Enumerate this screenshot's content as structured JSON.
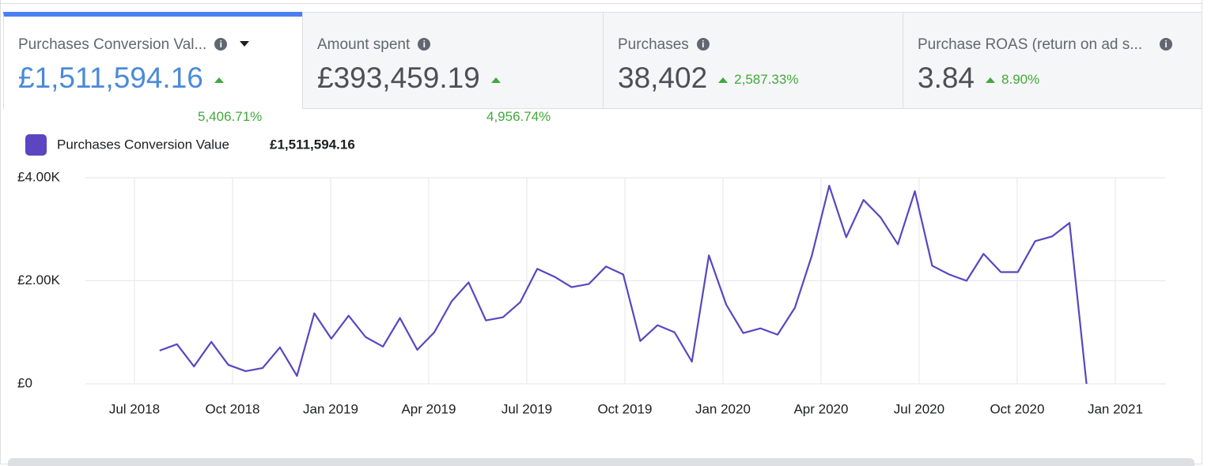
{
  "tabs": [
    {
      "title": "Purchases Conversion Val...",
      "value": "£1,511,594.16",
      "change": "5,406.71%"
    },
    {
      "title": "Amount spent",
      "value": "£393,459.19",
      "change": "4,956.74%"
    },
    {
      "title": "Purchases",
      "value": "38,402",
      "change": "2,587.33%"
    },
    {
      "title": "Purchase ROAS (return on ad s...",
      "value": "3.84",
      "change": "8.90%"
    }
  ],
  "chart_data": {
    "type": "line",
    "legend_total": "£1,511,594.16",
    "x": [
      0.77,
      1.3,
      1.82,
      2.35,
      2.87,
      3.4,
      3.92,
      4.45,
      4.97,
      5.5,
      6.02,
      6.55,
      7.07,
      7.6,
      8.12,
      8.65,
      9.17,
      9.7,
      10.22,
      10.75,
      11.27,
      11.8,
      12.32,
      12.85,
      13.37,
      13.9,
      14.42,
      14.95,
      15.47,
      16.0,
      16.52,
      17.05,
      17.57,
      18.1,
      18.62,
      19.15,
      19.67,
      20.2,
      20.72,
      21.25,
      21.77,
      22.3,
      22.82,
      23.35,
      23.87,
      24.4,
      24.92,
      25.45,
      25.97,
      26.5,
      27.02,
      27.55,
      28.07,
      28.6,
      29.12
    ],
    "series": [
      {
        "name": "Purchases Conversion Value",
        "color": "#5b45c1",
        "values": [
          646,
          769,
          338,
          815,
          369,
          246,
          308,
          708,
          154,
          1369,
          877,
          1323,
          908,
          723,
          1277,
          661,
          1000,
          1600,
          1969,
          1231,
          1292,
          1585,
          2231,
          2077,
          1877,
          1938,
          2277,
          2123,
          831,
          1138,
          1000,
          431,
          2492,
          1538,
          985,
          1077,
          954,
          1477,
          2492,
          3846,
          2846,
          3569,
          3231,
          2708,
          3738,
          2292,
          2123,
          2000,
          2523,
          2169,
          2169,
          2769,
          2862,
          3123,
          0
        ]
      }
    ],
    "xlim": [
      -1.5,
      31.55
    ],
    "xticks": [
      {
        "value": 0,
        "label": "Jul 2018"
      },
      {
        "value": 3,
        "label": "Oct 2018"
      },
      {
        "value": 6,
        "label": "Jan 2019"
      },
      {
        "value": 9,
        "label": "Apr 2019"
      },
      {
        "value": 12,
        "label": "Jul 2019"
      },
      {
        "value": 15,
        "label": "Oct 2019"
      },
      {
        "value": 18,
        "label": "Jan 2020"
      },
      {
        "value": 21,
        "label": "Apr 2020"
      },
      {
        "value": 24,
        "label": "Jul 2020"
      },
      {
        "value": 27,
        "label": "Oct 2020"
      },
      {
        "value": 30,
        "label": "Jan 2021"
      }
    ],
    "ylim": [
      0,
      4000
    ],
    "yticks": [
      {
        "value": 0,
        "label": "£0"
      },
      {
        "value": 2000,
        "label": "£2.00K"
      },
      {
        "value": 4000,
        "label": "£4.00K"
      }
    ],
    "grid": true
  }
}
